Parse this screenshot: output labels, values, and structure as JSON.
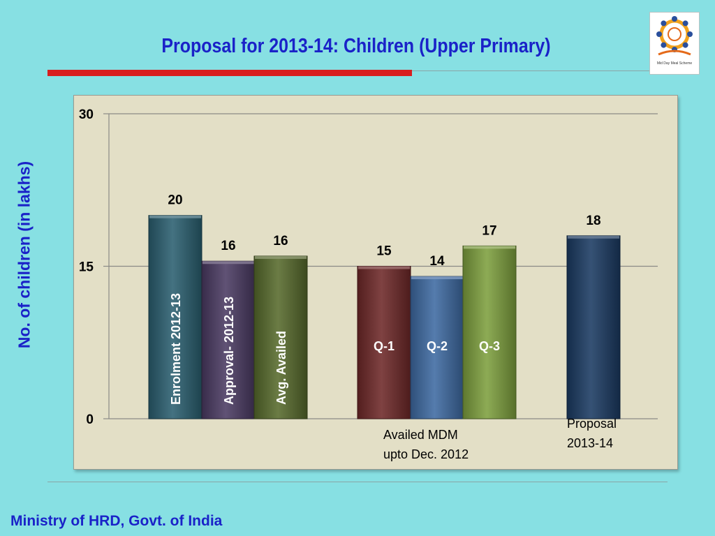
{
  "slide": {
    "title": "Proposal for 2013-14: Children (Upper Primary)",
    "footer": "Ministry of HRD, Govt. of India",
    "logo_caption": "Mid Day Meal Scheme"
  },
  "chart_data": {
    "type": "bar",
    "title": "Proposal for 2013-14: Children (Upper Primary)",
    "ylabel": "No. of children (in lakhs)",
    "xlabel": "",
    "ylim": [
      0,
      30
    ],
    "yticks": [
      0,
      15,
      30
    ],
    "grid": true,
    "bars": [
      {
        "label": "Enrolment 2012-13",
        "value": 20,
        "value_label": "20",
        "color": "#2a5f70",
        "label_orientation": "vertical"
      },
      {
        "label": "Approval- 2012-13",
        "value": 15.5,
        "value_label": "16",
        "color": "#4a3a62",
        "label_orientation": "vertical"
      },
      {
        "label": "Avg. Availed",
        "value": 16,
        "value_label": "16",
        "color": "#576a2c",
        "label_orientation": "vertical"
      },
      {
        "label": "Q-1",
        "value": 15,
        "value_label": "15",
        "color": "#6e2828",
        "label_orientation": "horizontal"
      },
      {
        "label": "Q-2",
        "value": 14,
        "value_label": "14",
        "color": "#3e6aa2",
        "label_orientation": "horizontal"
      },
      {
        "label": "Q-3",
        "value": 17,
        "value_label": "17",
        "color": "#7ea03e",
        "label_orientation": "horizontal"
      },
      {
        "label": "",
        "value": 18,
        "value_label": "18",
        "color": "#1b3a62",
        "label_orientation": "none"
      }
    ],
    "group_labels": [
      {
        "lines": [
          "Availed  MDM",
          "upto Dec. 2012"
        ]
      },
      {
        "lines": [
          "Proposal",
          "2013-14"
        ]
      }
    ]
  }
}
